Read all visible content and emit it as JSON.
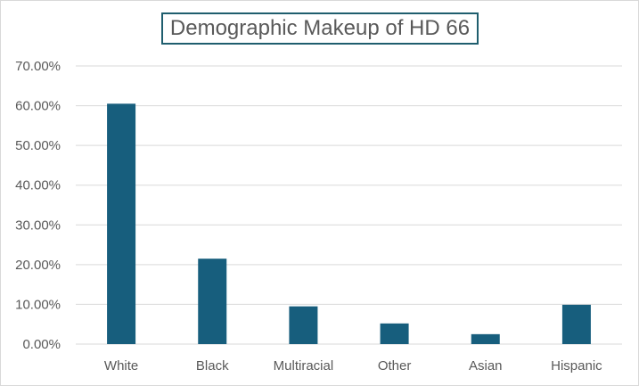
{
  "chart_data": {
    "type": "bar",
    "title": "Demographic Makeup of HD 66",
    "categories": [
      "White",
      "Black",
      "Multiracial",
      "Other",
      "Asian",
      "Hispanic"
    ],
    "values": [
      0.605,
      0.215,
      0.095,
      0.052,
      0.025,
      0.099
    ],
    "ylim": [
      0,
      0.7
    ],
    "yticks": [
      0,
      0.1,
      0.2,
      0.3,
      0.4,
      0.5,
      0.6,
      0.7
    ],
    "ytick_labels": [
      "0.00%",
      "10.00%",
      "20.00%",
      "30.00%",
      "40.00%",
      "50.00%",
      "60.00%",
      "70.00%"
    ],
    "grid": true,
    "legend": "none",
    "colors": {
      "bar": "#175e7d",
      "grid": "#d9d9d9",
      "text": "#595959",
      "title_border": "#1f5e6e"
    }
  }
}
